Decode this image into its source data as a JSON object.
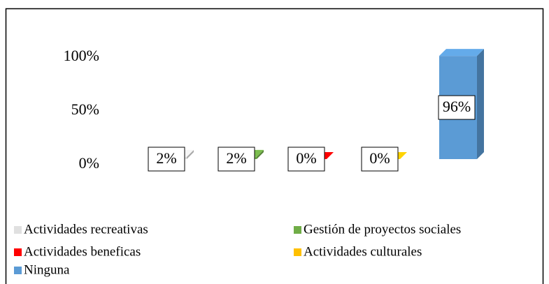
{
  "chart_data": {
    "type": "bar",
    "series": [
      {
        "name": "Actividades recreativas",
        "color": "#e0e0e0",
        "values": [
          2
        ],
        "value_labels": [
          "2%"
        ]
      },
      {
        "name": "Gestión de proyectos sociales",
        "color": "#70ad47",
        "values": [
          2
        ],
        "value_labels": [
          "2%"
        ]
      },
      {
        "name": "Actividades beneficas",
        "color": "#ff0000",
        "values": [
          0
        ],
        "value_labels": [
          "0%"
        ]
      },
      {
        "name": "Actividades culturales",
        "color": "#ffc000",
        "values": [
          0
        ],
        "value_labels": [
          "0%"
        ]
      },
      {
        "name": "Ninguna",
        "color": "#5b9bd5",
        "values": [
          96
        ],
        "value_labels": [
          "96%"
        ]
      }
    ],
    "ylim": [
      0,
      100
    ],
    "yticks": [
      {
        "value": 0,
        "label": "0%"
      },
      {
        "value": 50,
        "label": "50%"
      },
      {
        "value": 100,
        "label": "100%"
      }
    ]
  }
}
